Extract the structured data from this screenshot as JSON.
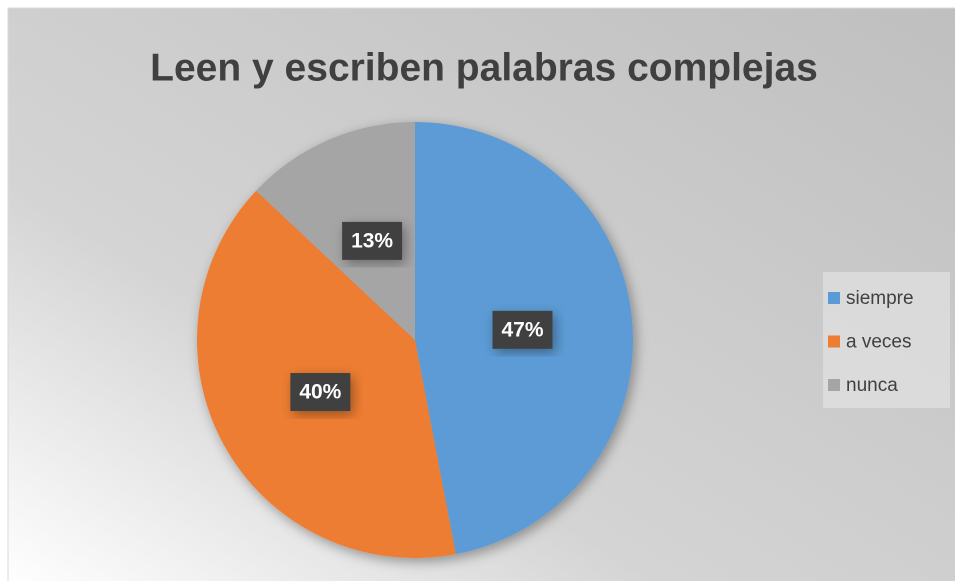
{
  "chart_data": {
    "type": "pie",
    "title": "Leen y escriben palabras complejas",
    "categories": [
      "siempre",
      "a veces",
      "nunca"
    ],
    "values": [
      47,
      40,
      13
    ],
    "value_labels": [
      "47%",
      "40%",
      "13%"
    ],
    "colors": [
      "#5b9bd5",
      "#ed7d31",
      "#a5a5a5"
    ],
    "legend": "right"
  }
}
